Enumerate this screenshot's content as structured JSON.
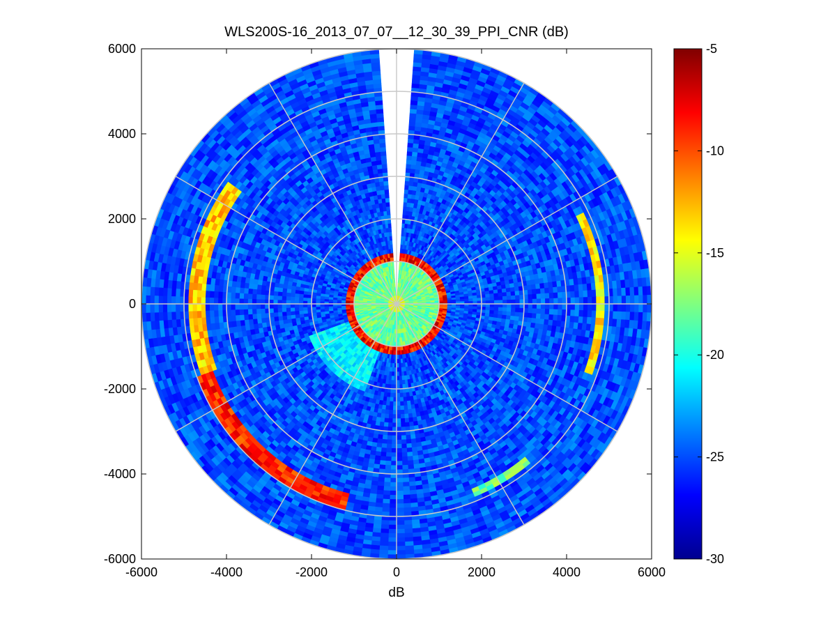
{
  "chart_data": {
    "type": "heatmap",
    "projection": "polar-ppi",
    "title": "WLS200S-16_2013_07_07__12_30_39_PPI_CNR (dB)",
    "xlabel": "dB",
    "ylabel": "",
    "xlim": [
      -6000,
      6000
    ],
    "ylim": [
      -6000,
      6000
    ],
    "x_ticks": [
      -6000,
      -4000,
      -2000,
      0,
      2000,
      4000,
      6000
    ],
    "y_ticks": [
      6000,
      4000,
      2000,
      0,
      -2000,
      -4000,
      -6000
    ],
    "x_tick_labels": [
      "-6000",
      "-4000",
      "-2000",
      "0",
      "2000",
      "4000",
      "6000"
    ],
    "y_tick_labels": [
      "6000",
      "4000",
      "2000",
      "0",
      "-2000",
      "-4000",
      "-6000"
    ],
    "max_range": 6000,
    "range_rings": [
      1000,
      2000,
      3000,
      4000,
      5000,
      6000
    ],
    "spoke_angles_deg": [
      0,
      30,
      60,
      90,
      120,
      150,
      180,
      210,
      240,
      270,
      300,
      330
    ],
    "missing_sector_deg": [
      -4,
      4
    ],
    "grid": true,
    "colorbar": {
      "colormap": "jet",
      "clim": [
        -30,
        -5
      ],
      "ticks": [
        -5,
        -10,
        -15,
        -20,
        -25,
        -30
      ],
      "tick_labels": [
        "-5",
        "-10",
        "-15",
        "-20",
        "-25",
        "-30"
      ],
      "position": "right"
    },
    "features": [
      {
        "name": "near-range high-CNR ring",
        "range": [
          1000,
          1200
        ],
        "value_db": -5
      },
      {
        "name": "near-range core",
        "range": [
          0,
          1000
        ],
        "value_db": -18
      },
      {
        "name": "strong return arc",
        "range": [
          4600,
          4950
        ],
        "azimuth_deg": [
          195,
          250
        ],
        "value_db": -9
      },
      {
        "name": "strong return arc",
        "range": [
          4500,
          4900
        ],
        "azimuth_deg": [
          250,
          305
        ],
        "value_db": -13
      },
      {
        "name": "strong return arc",
        "range": [
          4700,
          4900
        ],
        "azimuth_deg": [
          65,
          110
        ],
        "value_db": -14
      },
      {
        "name": "strong return arc",
        "range": [
          4700,
          4900
        ],
        "azimuth_deg": [
          140,
          158
        ],
        "value_db": -18
      }
    ],
    "background_value_db": -25
  }
}
